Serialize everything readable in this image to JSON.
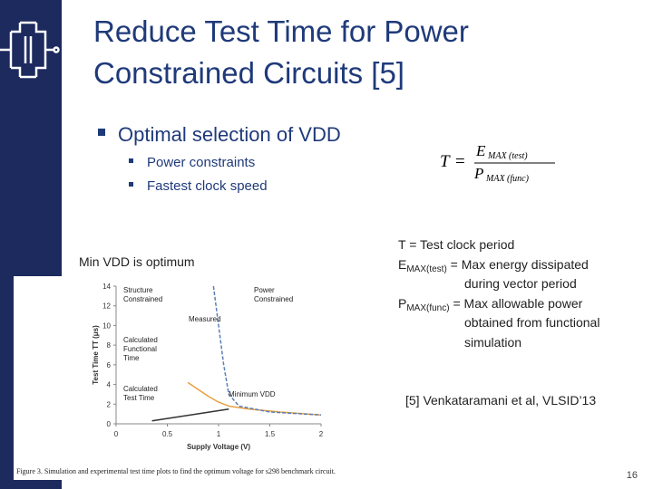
{
  "header": {
    "title_lines": [
      "Reduce Test Time for Power",
      "Constrained Circuits [5]"
    ]
  },
  "bullets": {
    "main": "Optimal selection of VDD",
    "sub": [
      "Power constraints",
      "Fastest clock speed"
    ]
  },
  "formula": {
    "lhs": "T",
    "eq": "=",
    "num_main": "E",
    "num_sub": "MAX (test)",
    "den_main": "P",
    "den_sub": "MAX (func)"
  },
  "left_note": "Min VDD is optimum",
  "definitions": {
    "line1": "T = Test clock period",
    "e_main": "E",
    "e_sub": "MAX(test)",
    "e_text": " = Max energy dissipated",
    "e_cont": "during vector period",
    "p_main": "P",
    "p_sub": "MAX(func)",
    "p_text": " = Max allowable power",
    "p_cont": [
      "obtained from functional",
      "simulation"
    ]
  },
  "citation": "[5] Venkataramani et al, VLSID’13",
  "page_number": "16",
  "figure": {
    "type": "line",
    "xlabel": "Supply Voltage (V)",
    "ylabel": "Test Time TT (μs)",
    "xlim": [
      0,
      2
    ],
    "ylim": [
      0,
      14
    ],
    "xticks": [
      0,
      0.5,
      1,
      1.5,
      2
    ],
    "yticks": [
      0,
      2,
      4,
      6,
      8,
      10,
      12,
      14
    ],
    "series": [
      {
        "color": "#e8a040",
        "dash": false,
        "x": [
          0.7,
          0.8,
          0.9,
          1.0,
          1.1,
          1.3,
          1.6,
          2.0
        ],
        "values": [
          4.2,
          3.5,
          2.8,
          2.2,
          1.8,
          1.5,
          1.2,
          0.9
        ]
      },
      {
        "color": "#5a7fb8",
        "dash": true,
        "x": [
          0.95,
          1.0,
          1.05,
          1.1,
          1.2,
          1.5,
          2.0
        ],
        "values": [
          14,
          10,
          6,
          3,
          1.8,
          1.2,
          0.9
        ]
      },
      {
        "color": "#333333",
        "dash": false,
        "x": [
          0.35,
          1.1
        ],
        "values": [
          0.3,
          1.5
        ]
      }
    ],
    "annotations": [
      {
        "lines": [
          "Structure",
          "Constrained"
        ]
      },
      {
        "lines": [
          "Power",
          "Constrained"
        ]
      },
      {
        "lines": [
          "Measured"
        ]
      },
      {
        "lines": [
          "Calculated",
          "Functional",
          "Time"
        ]
      },
      {
        "lines": [
          "Calculated",
          "Test Time"
        ]
      },
      {
        "lines": [
          "Minimum VDD"
        ]
      }
    ],
    "caption": "Figure 3.   Simulation and experimental test time plots to find the optimum voltage for s298 benchmark circuit."
  }
}
